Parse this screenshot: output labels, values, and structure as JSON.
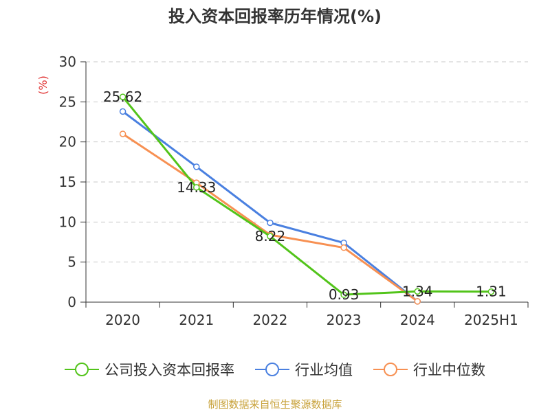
{
  "chart_data": {
    "type": "line",
    "title": "投入资本回报率历年情况(%)",
    "ylabel": "(%)",
    "categories": [
      "2020",
      "2021",
      "2022",
      "2023",
      "2024",
      "2025H1"
    ],
    "ylim": [
      0,
      30
    ],
    "yticks": [
      0,
      5,
      10,
      15,
      20,
      25,
      30
    ],
    "grid": true,
    "legend_position": "bottom",
    "series": [
      {
        "name": "公司投入资本回报率",
        "color": "#52c41a",
        "values": [
          25.62,
          14.33,
          8.22,
          0.93,
          1.34,
          1.31
        ],
        "labels": [
          "25.62",
          "14.33",
          "8.22",
          "0.93",
          "1.34",
          "1.31"
        ]
      },
      {
        "name": "行业均值",
        "color": "#4a80e0",
        "values": [
          23.8,
          16.9,
          9.9,
          7.4,
          0.1,
          null
        ]
      },
      {
        "name": "行业中位数",
        "color": "#f79052",
        "values": [
          21.0,
          14.9,
          8.4,
          6.8,
          0.1,
          null
        ]
      }
    ]
  },
  "footer": "制图数据来自恒生聚源数据库"
}
